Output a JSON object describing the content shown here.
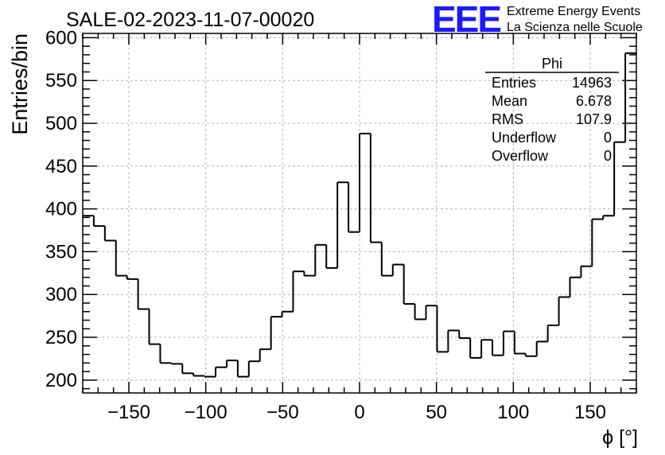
{
  "header": {
    "title": "SALE-02-2023-11-07-00020",
    "logo_text": "EEE",
    "logo_line1": "Extreme Energy Events",
    "logo_line2": "La Scienza nelle Scuole"
  },
  "stats": {
    "name": "Phi",
    "rows": [
      {
        "label": "Entries",
        "value": "14963"
      },
      {
        "label": "Mean",
        "value": "6.678"
      },
      {
        "label": "RMS",
        "value": "107.9"
      },
      {
        "label": "Underflow",
        "value": "0"
      },
      {
        "label": "Overflow",
        "value": "0"
      }
    ]
  },
  "colors": {
    "line": "#000000",
    "grid": "#b4b4b4",
    "logo": "#1a1aff"
  },
  "chart_data": {
    "type": "histogram",
    "title": "SALE-02-2023-11-07-00020",
    "xlabel": "ϕ [°]",
    "ylabel": "Entries/bin",
    "xlim": [
      -180,
      180
    ],
    "ylim": [
      185,
      605
    ],
    "bin_width": 7.2,
    "grid": true,
    "xticks": [
      -150,
      -100,
      -50,
      0,
      50,
      100,
      150
    ],
    "xtick_labels": [
      "−150",
      "−100",
      "−50",
      "0",
      "50",
      "100",
      "150"
    ],
    "yticks": [
      200,
      250,
      300,
      350,
      400,
      450,
      500,
      550,
      600
    ],
    "values": [
      392,
      380,
      363,
      322,
      318,
      283,
      242,
      220,
      219,
      208,
      205,
      204,
      215,
      223,
      204,
      222,
      236,
      274,
      280,
      327,
      322,
      358,
      331,
      431,
      373,
      488,
      361,
      322,
      335,
      289,
      271,
      287,
      233,
      258,
      249,
      226,
      247,
      229,
      257,
      231,
      228,
      245,
      264,
      297,
      320,
      333,
      388,
      392,
      478,
      582
    ]
  }
}
